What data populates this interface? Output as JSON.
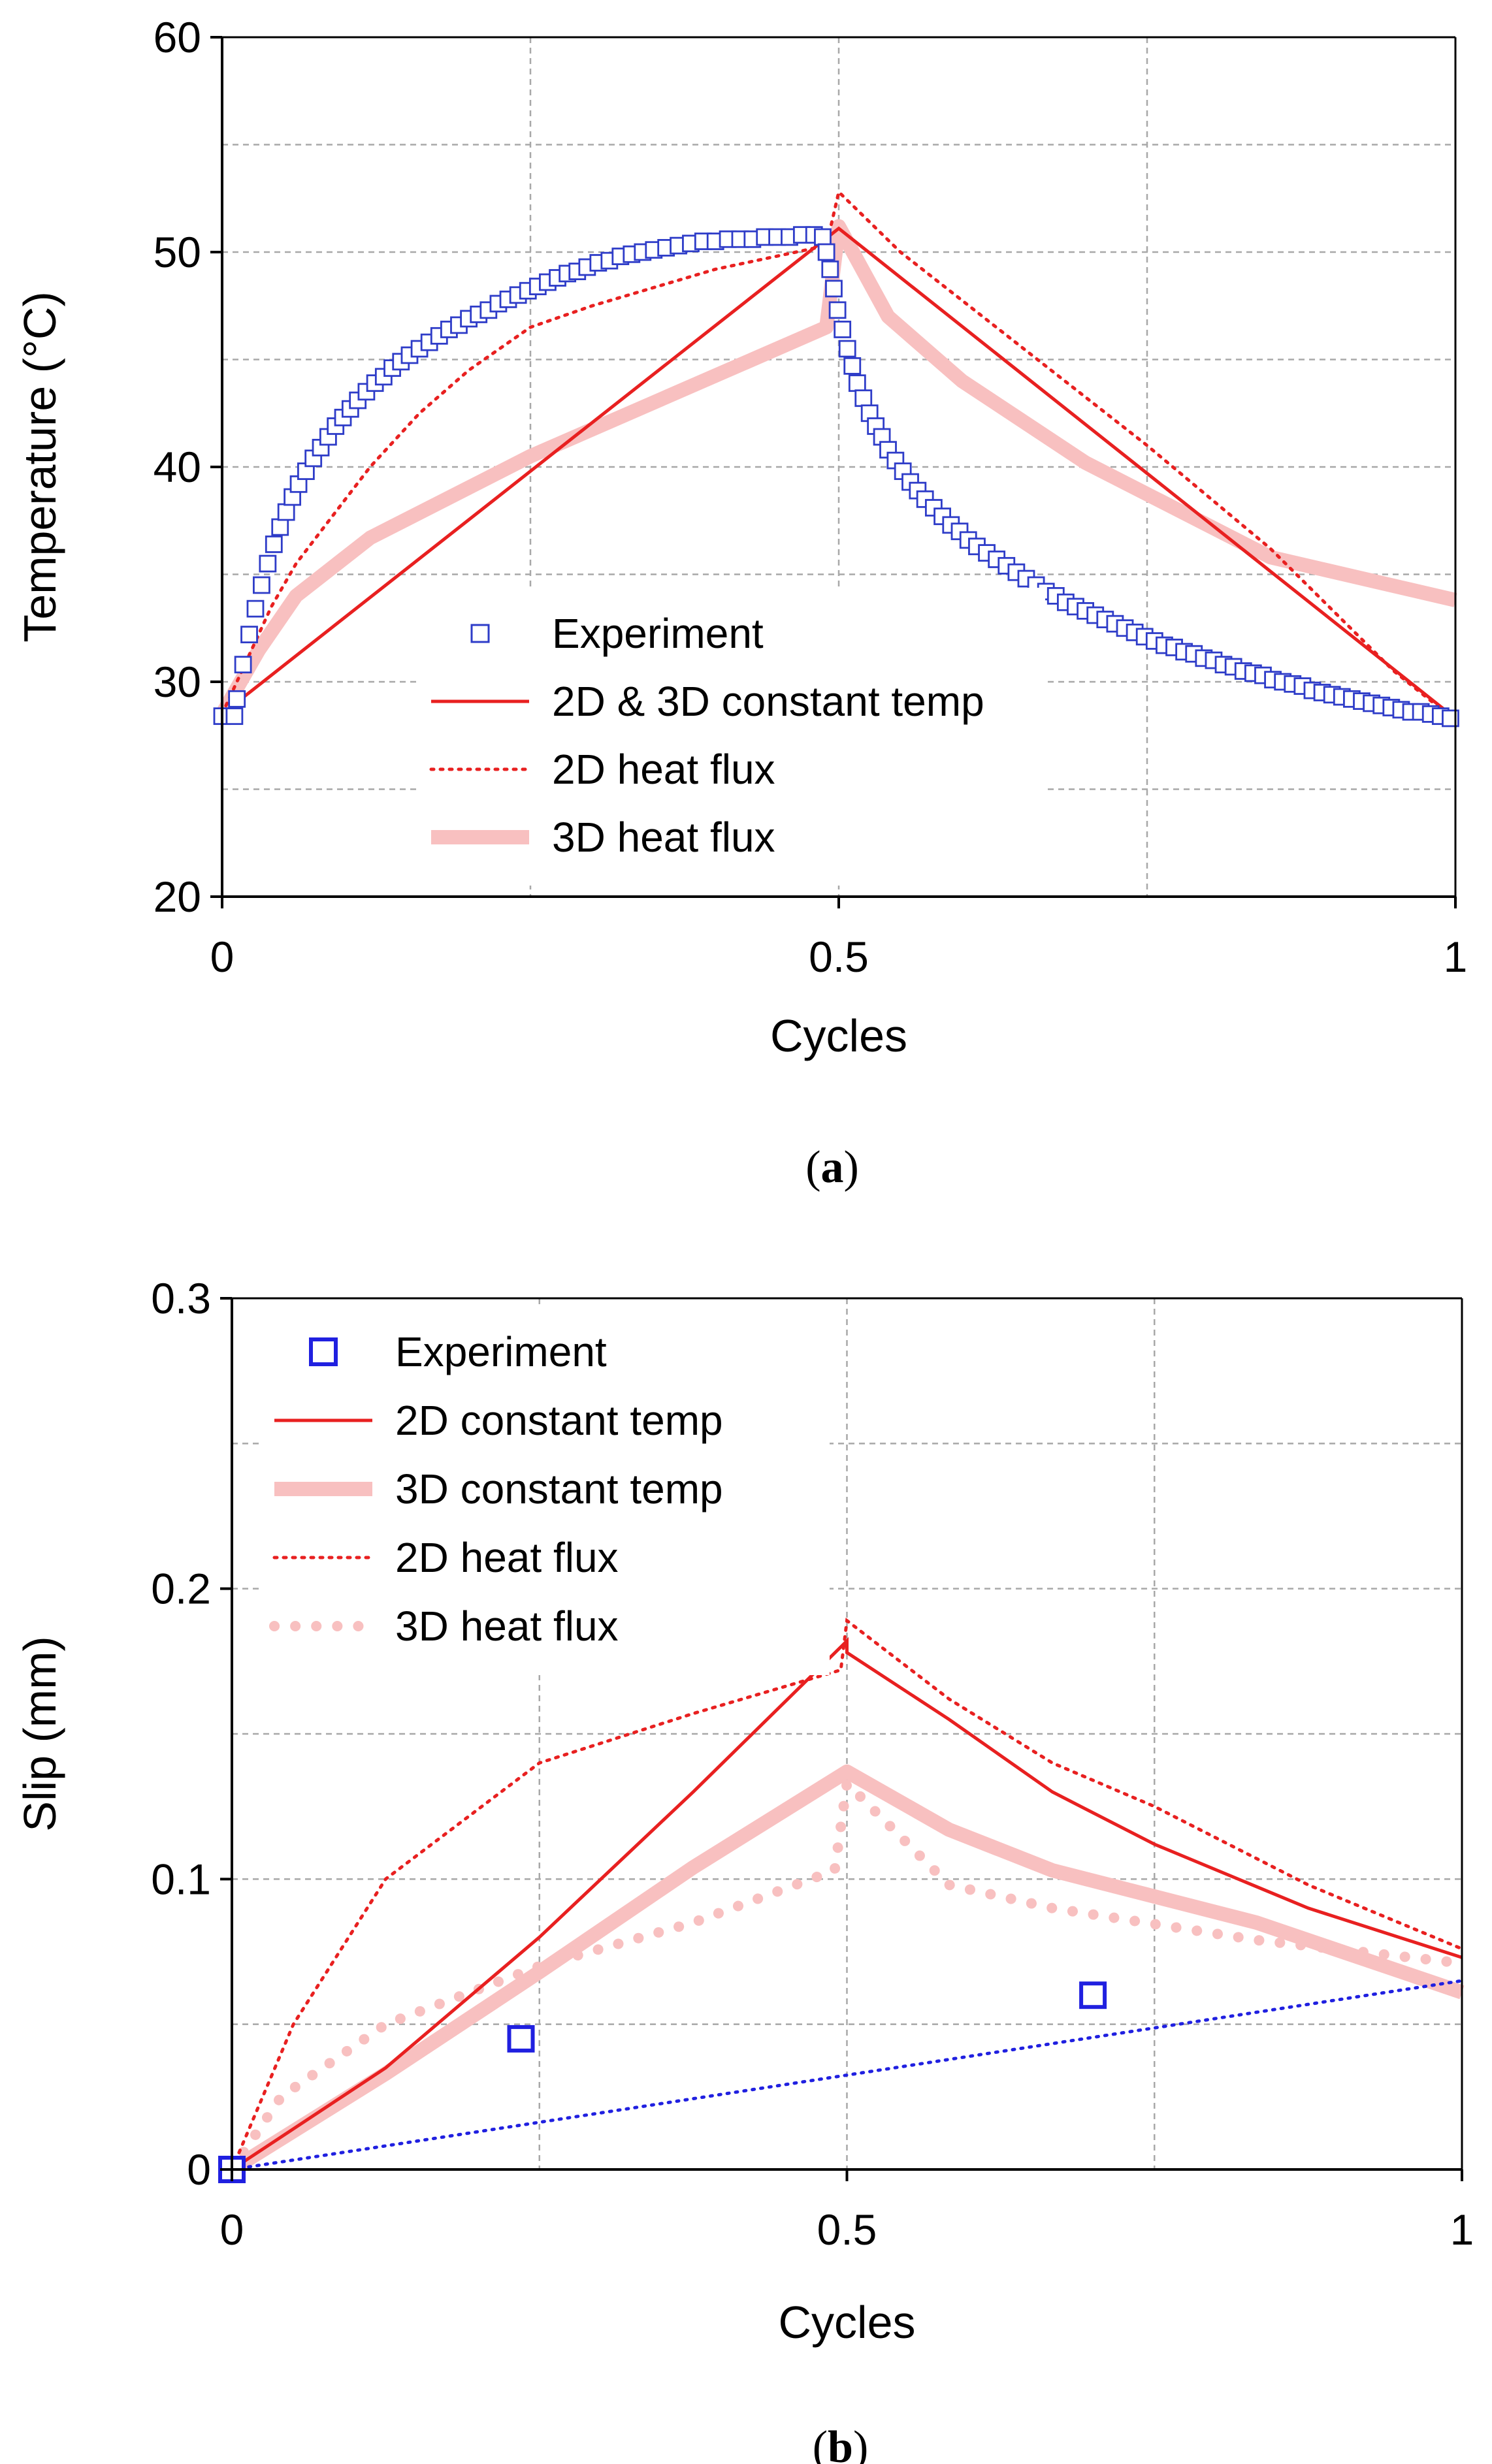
{
  "chart_data": [
    {
      "type": "line",
      "caption_letter": "a",
      "xlabel": "Cycles",
      "ylabel": "Temperature (°C)",
      "xlim": [
        0,
        1
      ],
      "ylim": [
        20,
        60
      ],
      "xticks": [
        0,
        0.5,
        1
      ],
      "xtick_labels": [
        "0",
        "0.5",
        "1"
      ],
      "yticks": [
        20,
        30,
        40,
        50,
        60
      ],
      "ytick_labels": [
        "20",
        "30",
        "40",
        "50",
        "60"
      ],
      "grid": "dashed",
      "legend_position": "center-left",
      "series": [
        {
          "name": "Experiment",
          "style": "markers",
          "color": "#2E3CC8",
          "points": [
            [
              0.0,
              28.4
            ],
            [
              0.01,
              28.4
            ],
            [
              0.012,
              29.2
            ],
            [
              0.017,
              30.8
            ],
            [
              0.022,
              32.2
            ],
            [
              0.027,
              33.4
            ],
            [
              0.032,
              34.5
            ],
            [
              0.037,
              35.5
            ],
            [
              0.042,
              36.4
            ],
            [
              0.047,
              37.2
            ],
            [
              0.052,
              37.9
            ],
            [
              0.057,
              38.6
            ],
            [
              0.062,
              39.2
            ],
            [
              0.068,
              39.8
            ],
            [
              0.074,
              40.4
            ],
            [
              0.08,
              40.9
            ],
            [
              0.086,
              41.4
            ],
            [
              0.092,
              41.9
            ],
            [
              0.098,
              42.3
            ],
            [
              0.104,
              42.7
            ],
            [
              0.11,
              43.1
            ],
            [
              0.117,
              43.5
            ],
            [
              0.124,
              43.9
            ],
            [
              0.131,
              44.2
            ],
            [
              0.138,
              44.6
            ],
            [
              0.145,
              44.9
            ],
            [
              0.152,
              45.2
            ],
            [
              0.16,
              45.5
            ],
            [
              0.168,
              45.8
            ],
            [
              0.176,
              46.1
            ],
            [
              0.184,
              46.4
            ],
            [
              0.192,
              46.6
            ],
            [
              0.2,
              46.9
            ],
            [
              0.208,
              47.1
            ],
            [
              0.216,
              47.3
            ],
            [
              0.224,
              47.6
            ],
            [
              0.232,
              47.8
            ],
            [
              0.24,
              48.0
            ],
            [
              0.248,
              48.2
            ],
            [
              0.256,
              48.4
            ],
            [
              0.264,
              48.6
            ],
            [
              0.272,
              48.8
            ],
            [
              0.28,
              49.0
            ],
            [
              0.288,
              49.1
            ],
            [
              0.296,
              49.3
            ],
            [
              0.305,
              49.5
            ],
            [
              0.314,
              49.6
            ],
            [
              0.323,
              49.8
            ],
            [
              0.332,
              49.9
            ],
            [
              0.341,
              50.0
            ],
            [
              0.35,
              50.1
            ],
            [
              0.36,
              50.2
            ],
            [
              0.37,
              50.3
            ],
            [
              0.38,
              50.4
            ],
            [
              0.39,
              50.5
            ],
            [
              0.4,
              50.5
            ],
            [
              0.41,
              50.6
            ],
            [
              0.42,
              50.6
            ],
            [
              0.43,
              50.6
            ],
            [
              0.44,
              50.7
            ],
            [
              0.45,
              50.7
            ],
            [
              0.46,
              50.7
            ],
            [
              0.47,
              50.8
            ],
            [
              0.48,
              50.8
            ],
            [
              0.487,
              50.7
            ],
            [
              0.49,
              50.0
            ],
            [
              0.493,
              49.2
            ],
            [
              0.496,
              48.3
            ],
            [
              0.499,
              47.3
            ],
            [
              0.503,
              46.4
            ],
            [
              0.507,
              45.5
            ],
            [
              0.511,
              44.7
            ],
            [
              0.515,
              43.9
            ],
            [
              0.52,
              43.2
            ],
            [
              0.525,
              42.5
            ],
            [
              0.53,
              41.9
            ],
            [
              0.535,
              41.4
            ],
            [
              0.54,
              40.8
            ],
            [
              0.546,
              40.3
            ],
            [
              0.552,
              39.8
            ],
            [
              0.558,
              39.3
            ],
            [
              0.564,
              38.9
            ],
            [
              0.57,
              38.5
            ],
            [
              0.577,
              38.1
            ],
            [
              0.584,
              37.7
            ],
            [
              0.591,
              37.3
            ],
            [
              0.598,
              37.0
            ],
            [
              0.605,
              36.6
            ],
            [
              0.612,
              36.3
            ],
            [
              0.62,
              36.0
            ],
            [
              0.628,
              35.7
            ],
            [
              0.636,
              35.4
            ],
            [
              0.644,
              35.1
            ],
            [
              0.652,
              34.8
            ],
            [
              0.66,
              34.5
            ],
            [
              0.668,
              34.2
            ],
            [
              0.676,
              34.0
            ],
            [
              0.684,
              33.7
            ],
            [
              0.692,
              33.5
            ],
            [
              0.7,
              33.3
            ],
            [
              0.708,
              33.1
            ],
            [
              0.716,
              32.9
            ],
            [
              0.724,
              32.7
            ],
            [
              0.732,
              32.5
            ],
            [
              0.74,
              32.3
            ],
            [
              0.748,
              32.1
            ],
            [
              0.756,
              31.9
            ],
            [
              0.764,
              31.7
            ],
            [
              0.772,
              31.6
            ],
            [
              0.78,
              31.4
            ],
            [
              0.788,
              31.3
            ],
            [
              0.796,
              31.1
            ],
            [
              0.804,
              31.0
            ],
            [
              0.812,
              30.8
            ],
            [
              0.82,
              30.7
            ],
            [
              0.828,
              30.5
            ],
            [
              0.836,
              30.4
            ],
            [
              0.844,
              30.3
            ],
            [
              0.852,
              30.1
            ],
            [
              0.86,
              30.0
            ],
            [
              0.868,
              29.9
            ],
            [
              0.876,
              29.8
            ],
            [
              0.884,
              29.6
            ],
            [
              0.892,
              29.5
            ],
            [
              0.9,
              29.4
            ],
            [
              0.908,
              29.3
            ],
            [
              0.916,
              29.2
            ],
            [
              0.924,
              29.1
            ],
            [
              0.932,
              29.0
            ],
            [
              0.94,
              28.9
            ],
            [
              0.948,
              28.8
            ],
            [
              0.956,
              28.7
            ],
            [
              0.964,
              28.6
            ],
            [
              0.972,
              28.6
            ],
            [
              0.98,
              28.5
            ],
            [
              0.988,
              28.4
            ],
            [
              0.996,
              28.3
            ]
          ]
        },
        {
          "name": "2D & 3D constant temp",
          "style": "solid",
          "color": "#E82020",
          "points": [
            [
              0.0,
              28.5
            ],
            [
              0.5,
              51.1
            ],
            [
              1.0,
              28.3
            ]
          ]
        },
        {
          "name": "2D heat flux",
          "style": "dotted",
          "color": "#E82020",
          "points": [
            [
              0.0,
              28.5
            ],
            [
              0.04,
              33.5
            ],
            [
              0.06,
              35.5
            ],
            [
              0.08,
              37.0
            ],
            [
              0.12,
              40.0
            ],
            [
              0.16,
              42.5
            ],
            [
              0.2,
              44.5
            ],
            [
              0.25,
              46.5
            ],
            [
              0.3,
              47.5
            ],
            [
              0.4,
              49.2
            ],
            [
              0.49,
              50.3
            ],
            [
              0.5,
              52.8
            ],
            [
              0.55,
              50.0
            ],
            [
              0.65,
              45.5
            ],
            [
              0.75,
              41.0
            ],
            [
              0.85,
              36.2
            ],
            [
              0.95,
              30.5
            ],
            [
              1.0,
              28.2
            ]
          ]
        },
        {
          "name": "3D heat flux",
          "style": "thick",
          "color": "#F8C0C0",
          "points": [
            [
              0.0,
              28.5
            ],
            [
              0.03,
              31.5
            ],
            [
              0.06,
              34.0
            ],
            [
              0.12,
              36.7
            ],
            [
              0.25,
              40.5
            ],
            [
              0.35,
              43.0
            ],
            [
              0.43,
              45.0
            ],
            [
              0.49,
              46.5
            ],
            [
              0.5,
              51.2
            ],
            [
              0.54,
              47.0
            ],
            [
              0.6,
              44.0
            ],
            [
              0.7,
              40.2
            ],
            [
              0.85,
              35.8
            ],
            [
              1.0,
              33.8
            ]
          ]
        }
      ]
    },
    {
      "type": "line",
      "caption_letter": "b",
      "xlabel": "Cycles",
      "ylabel": "Slip (mm)",
      "xlim": [
        0,
        1
      ],
      "ylim": [
        0,
        0.3
      ],
      "xticks": [
        0,
        0.5,
        1
      ],
      "xtick_labels": [
        "0",
        "0.5",
        "1"
      ],
      "yticks": [
        0,
        0.1,
        0.2,
        0.3
      ],
      "ytick_labels": [
        "0",
        "0.1",
        "0.2",
        "0.3"
      ],
      "grid": "dashed",
      "legend_position": "top-left",
      "series": [
        {
          "name": "Experiment",
          "style": "markers",
          "color": "#2020E0",
          "points": [
            [
              0.0,
              0.0
            ],
            [
              0.235,
              0.045
            ],
            [
              0.7,
              0.06
            ]
          ]
        },
        {
          "name": "2D constant temp",
          "style": "solid",
          "color": "#E82020",
          "points": [
            [
              0.0,
              0.0
            ],
            [
              0.125,
              0.035
            ],
            [
              0.25,
              0.08
            ],
            [
              0.375,
              0.13
            ],
            [
              0.5,
              0.182
            ],
            [
              0.5,
              0.178
            ],
            [
              0.583,
              0.155
            ],
            [
              0.667,
              0.13
            ],
            [
              0.75,
              0.112
            ],
            [
              0.875,
              0.09
            ],
            [
              1.0,
              0.073
            ]
          ]
        },
        {
          "name": "3D constant temp",
          "style": "thick",
          "color": "#F8C0C0",
          "points": [
            [
              0.0,
              0.0
            ],
            [
              0.125,
              0.033
            ],
            [
              0.25,
              0.068
            ],
            [
              0.375,
              0.104
            ],
            [
              0.5,
              0.137
            ],
            [
              0.583,
              0.117
            ],
            [
              0.667,
              0.103
            ],
            [
              0.833,
              0.085
            ],
            [
              1.0,
              0.061
            ]
          ]
        },
        {
          "name": "2D heat flux",
          "style": "dotted",
          "color": "#E82020",
          "points": [
            [
              0.0,
              0.0
            ],
            [
              0.05,
              0.05
            ],
            [
              0.125,
              0.1
            ],
            [
              0.25,
              0.14
            ],
            [
              0.375,
              0.157
            ],
            [
              0.495,
              0.172
            ],
            [
              0.5,
              0.189
            ],
            [
              0.583,
              0.162
            ],
            [
              0.667,
              0.14
            ],
            [
              0.75,
              0.125
            ],
            [
              0.875,
              0.098
            ],
            [
              1.0,
              0.076
            ]
          ]
        },
        {
          "name": "3D heat flux",
          "style": "pinkdots",
          "color": "#F8C0C0",
          "points": [
            [
              0.0,
              0.0
            ],
            [
              0.04,
              0.025
            ],
            [
              0.125,
              0.05
            ],
            [
              0.25,
              0.07
            ],
            [
              0.375,
              0.085
            ],
            [
              0.49,
              0.103
            ],
            [
              0.5,
              0.133
            ],
            [
              0.583,
              0.098
            ],
            [
              0.667,
              0.09
            ],
            [
              0.833,
              0.079
            ],
            [
              1.0,
              0.071
            ]
          ]
        },
        {
          "name": "",
          "style": "bluedotted",
          "color": "#2020E0",
          "legend": false,
          "points": [
            [
              0.0,
              0.0
            ],
            [
              1.0,
              0.065
            ]
          ]
        }
      ]
    }
  ]
}
